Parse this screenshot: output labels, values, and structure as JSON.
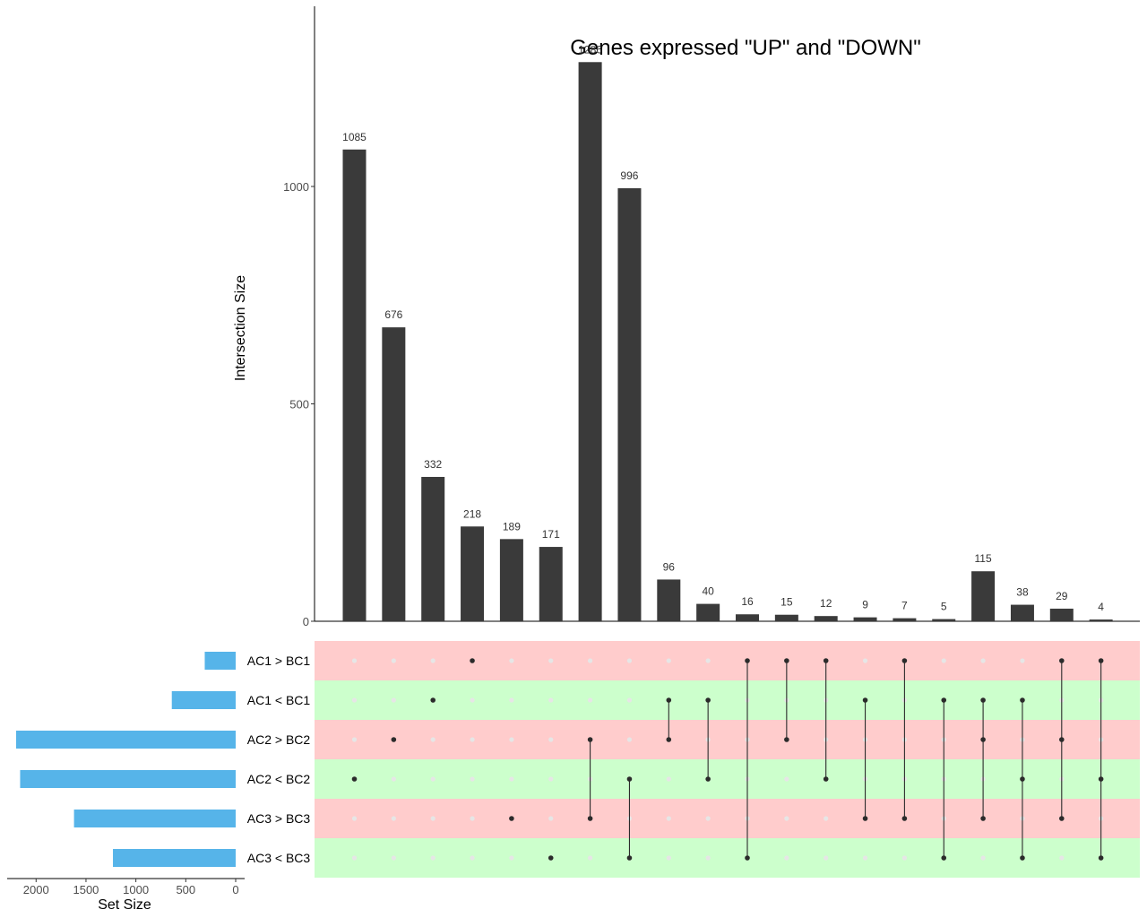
{
  "chart_data": {
    "type": "upset",
    "title": "Genes expressed \"UP\" and \"DOWN\"",
    "intersection_axis": {
      "label": "Intersection Size",
      "ylim": [
        0,
        1400
      ],
      "ticks": [
        0,
        500,
        1000
      ],
      "tick_labels": [
        "0",
        "500",
        "1000"
      ]
    },
    "set_size_axis": {
      "label": "Set Size",
      "xlim": [
        0,
        2200
      ],
      "ticks": [
        2000,
        1500,
        1000,
        500,
        0
      ],
      "tick_labels": [
        "2000",
        "1500",
        "1000",
        "500",
        "0"
      ]
    },
    "sets": [
      {
        "name": "AC1 > BC1",
        "size": 310,
        "row_color": "#ffcccc"
      },
      {
        "name": "AC1 < BC1",
        "size": 640,
        "row_color": "#ccffcc"
      },
      {
        "name": "AC2 > BC2",
        "size": 2200,
        "row_color": "#ffcccc"
      },
      {
        "name": "AC2 < BC2",
        "size": 2160,
        "row_color": "#ccffcc"
      },
      {
        "name": "AC3 > BC3",
        "size": 1620,
        "row_color": "#ffcccc"
      },
      {
        "name": "AC3 < BC3",
        "size": 1230,
        "row_color": "#ccffcc"
      }
    ],
    "intersections": [
      {
        "value": 1085,
        "label": "1085",
        "sets": [
          3
        ]
      },
      {
        "value": 676,
        "label": "676",
        "sets": [
          2
        ]
      },
      {
        "value": 332,
        "label": "332",
        "sets": [
          1
        ]
      },
      {
        "value": 218,
        "label": "218",
        "sets": [
          0
        ]
      },
      {
        "value": 189,
        "label": "189",
        "sets": [
          4
        ]
      },
      {
        "value": 171,
        "label": "171",
        "sets": [
          5
        ]
      },
      {
        "value": 1286,
        "label": "1286",
        "sets": [
          2,
          4
        ]
      },
      {
        "value": 996,
        "label": "996",
        "sets": [
          3,
          5
        ]
      },
      {
        "value": 96,
        "label": "96",
        "sets": [
          1,
          2
        ]
      },
      {
        "value": 40,
        "label": "40",
        "sets": [
          1,
          3
        ]
      },
      {
        "value": 16,
        "label": "16",
        "sets": [
          0,
          5
        ]
      },
      {
        "value": 15,
        "label": "15",
        "sets": [
          0,
          2
        ]
      },
      {
        "value": 12,
        "label": "12",
        "sets": [
          0,
          3
        ]
      },
      {
        "value": 9,
        "label": "9",
        "sets": [
          1,
          4
        ]
      },
      {
        "value": 7,
        "label": "7",
        "sets": [
          0,
          4
        ]
      },
      {
        "value": 5,
        "label": "5",
        "sets": [
          1,
          5
        ]
      },
      {
        "value": 115,
        "label": "115",
        "sets": [
          1,
          2,
          4
        ]
      },
      {
        "value": 38,
        "label": "38",
        "sets": [
          1,
          3,
          5
        ]
      },
      {
        "value": 29,
        "label": "29",
        "sets": [
          0,
          2,
          4
        ]
      },
      {
        "value": 4,
        "label": "4",
        "sets": [
          0,
          3,
          5
        ]
      }
    ],
    "colors": {
      "intersection_bar": "#3a3a3a",
      "set_bar": "#56b4e9",
      "dot_active": "#2b2b2b",
      "dot_inactive": "#e6e6e6",
      "row_up": "#ffcccc",
      "row_down": "#ccffcc"
    },
    "grid": false
  }
}
